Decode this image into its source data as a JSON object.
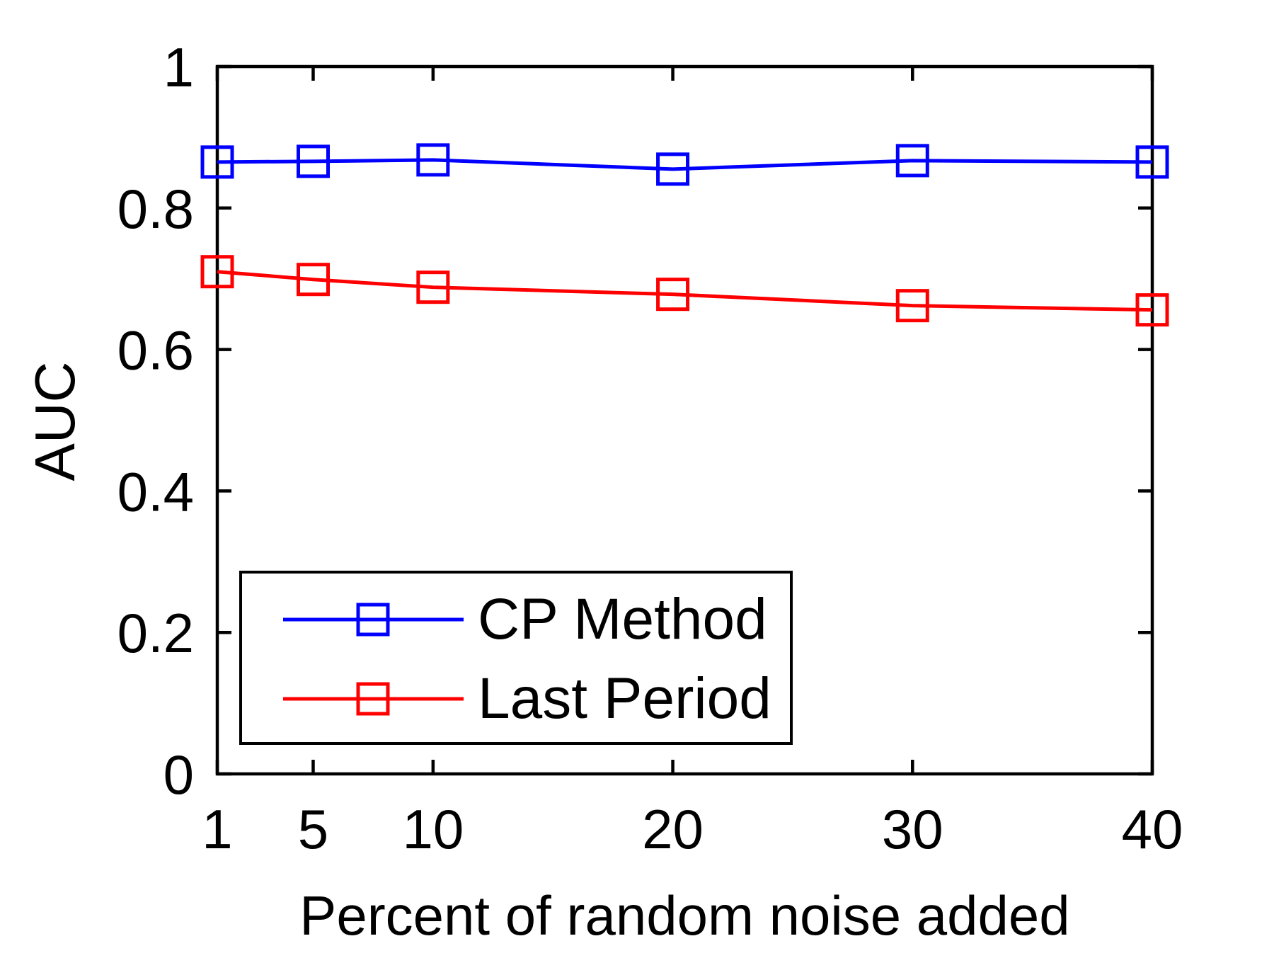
{
  "chart_data": {
    "type": "line",
    "x": [
      1,
      5,
      10,
      20,
      30,
      40
    ],
    "series": [
      {
        "name": "CP Method",
        "color": "#0000ff",
        "marker": "open-square",
        "values": [
          0.865,
          0.866,
          0.868,
          0.855,
          0.867,
          0.865
        ]
      },
      {
        "name": "Last Period",
        "color": "#ff0000",
        "marker": "open-square",
        "values": [
          0.71,
          0.699,
          0.688,
          0.678,
          0.662,
          0.656
        ]
      }
    ],
    "title": "",
    "xlabel": "Percent of random noise added",
    "ylabel": "AUC",
    "xlim": [
      1,
      40
    ],
    "ylim": [
      0,
      1
    ],
    "x_ticks": [
      1,
      5,
      10,
      20,
      30,
      40
    ],
    "x_tick_labels": [
      "1",
      "5",
      "10",
      "20",
      "30",
      "40"
    ],
    "y_ticks": [
      0,
      0.2,
      0.4,
      0.6,
      0.8,
      1
    ],
    "y_tick_labels": [
      "0",
      "0.2",
      "0.4",
      "0.6",
      "0.8",
      "1"
    ],
    "grid": false,
    "legend_position": "lower-left",
    "axis_color": "#000000",
    "background_color": "#ffffff"
  }
}
